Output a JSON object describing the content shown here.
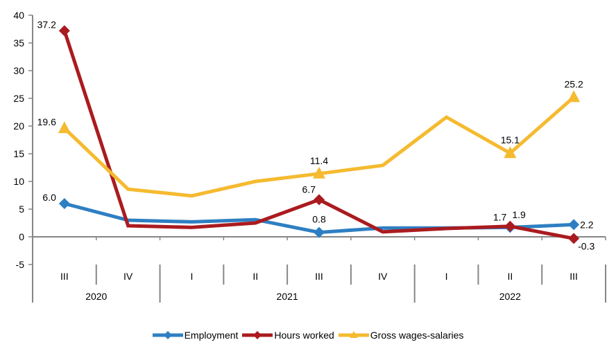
{
  "chart_data": {
    "type": "line",
    "title": "",
    "xlabel": "",
    "ylabel": "",
    "ylim": [
      -5,
      40
    ],
    "yticks": [
      40,
      35,
      30,
      25,
      20,
      15,
      10,
      5,
      0,
      -5
    ],
    "grid": false,
    "legend_position": "bottom",
    "categories": [
      "III",
      "IV",
      "I",
      "II",
      "III",
      "IV",
      "I",
      "II",
      "III"
    ],
    "year_groups": [
      {
        "label": "2020",
        "start": 0,
        "count": 2
      },
      {
        "label": "2021",
        "start": 2,
        "count": 4
      },
      {
        "label": "2022",
        "start": 6,
        "count": 3
      }
    ],
    "series": [
      {
        "name": "Employment",
        "color": "#2E7FC2",
        "marker": "diamond",
        "values": [
          6.0,
          3.0,
          2.7,
          3.1,
          0.8,
          1.6,
          1.6,
          1.7,
          2.2
        ],
        "labels": [
          {
            "index": 0,
            "text": "6.0",
            "pos": "left"
          },
          {
            "index": 4,
            "text": "0.8",
            "pos": "above"
          },
          {
            "index": 7,
            "text": "1.7",
            "pos": "above-left"
          },
          {
            "index": 8,
            "text": "2.2",
            "pos": "right"
          }
        ]
      },
      {
        "name": "Hours worked",
        "color": "#AA1B1F",
        "marker": "diamond",
        "values": [
          37.2,
          2.0,
          1.7,
          2.5,
          6.7,
          0.9,
          1.5,
          1.9,
          -0.3
        ],
        "labels": [
          {
            "index": 0,
            "text": "37.2",
            "pos": "left"
          },
          {
            "index": 4,
            "text": "6.7",
            "pos": "above-left"
          },
          {
            "index": 7,
            "text": "1.9",
            "pos": "above-right"
          },
          {
            "index": 8,
            "text": "-0.3",
            "pos": "below-right"
          }
        ]
      },
      {
        "name": "Gross wages-salaries",
        "color": "#F5BA2F",
        "marker": "triangle",
        "values": [
          19.6,
          8.6,
          7.4,
          10.0,
          11.4,
          12.9,
          21.6,
          15.1,
          25.2
        ],
        "labels": [
          {
            "index": 0,
            "text": "19.6",
            "pos": "left"
          },
          {
            "index": 4,
            "text": "11.4",
            "pos": "above"
          },
          {
            "index": 7,
            "text": "15.1",
            "pos": "above"
          },
          {
            "index": 8,
            "text": "25.2",
            "pos": "above"
          }
        ]
      }
    ]
  }
}
